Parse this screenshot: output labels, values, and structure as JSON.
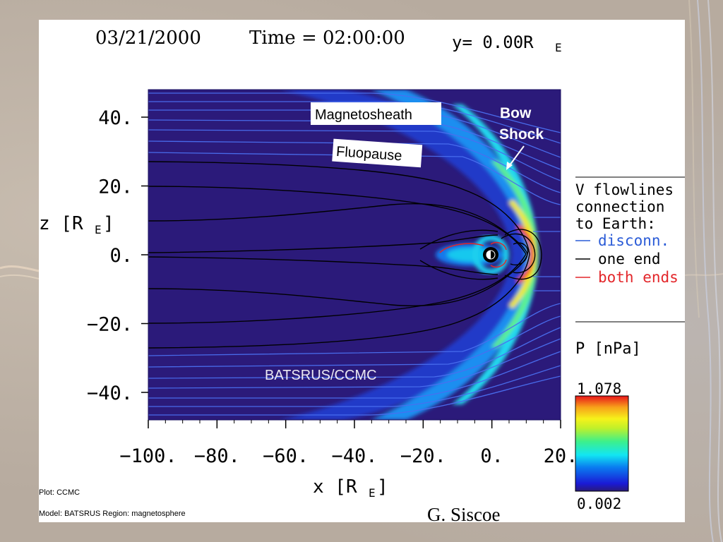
{
  "header": {
    "date": "03/21/2000",
    "time_label": "Time = 02:00:00",
    "y_label": "y= 0.00R",
    "y_sub": "E"
  },
  "annotations": {
    "magnetosheath": "Magnetosheath",
    "bow": "Bow",
    "shock": "Shock",
    "fluopause": "Fluopause",
    "model_label": "BATSRUS/CCMC"
  },
  "legend": {
    "title_lines": [
      "V flowlines",
      "connection",
      "to Earth:"
    ],
    "items": [
      {
        "label": "disconn.",
        "color": "#2a5bd7"
      },
      {
        "label": "one end",
        "color": "#000000"
      },
      {
        "label": "both ends",
        "color": "#e3262a"
      }
    ]
  },
  "colorbar": {
    "title": "P [nPa]",
    "max_label": "1.078",
    "min_label": "0.002"
  },
  "footer": {
    "plot_line": "Plot: CCMC",
    "model_line": "Model: BATSRUS   Region: magnetosphere",
    "credit": "G. Siscoe"
  },
  "chart_data": {
    "type": "heatmap",
    "title": "03/21/2000 Time = 02:00:00 y= 0.00RE",
    "xlabel": "x [RE]",
    "ylabel": "z [RE]",
    "xlim": [
      -100,
      20
    ],
    "ylim": [
      -48,
      48
    ],
    "x_ticks": [
      -100,
      -80,
      -60,
      -40,
      -20,
      0,
      20
    ],
    "x_tick_labels": [
      "−100.",
      "−80.",
      "−60.",
      "−40.",
      "−20.",
      "0.",
      "20."
    ],
    "y_ticks": [
      40,
      20,
      0,
      -20,
      -40
    ],
    "y_tick_labels": [
      "40.",
      "20.",
      "0.",
      "−20.",
      "−40."
    ],
    "color_variable": "P [nPa]",
    "color_range": [
      0.002,
      1.078
    ],
    "colormap": [
      "#2a1a78",
      "#1a1ad6",
      "#0a7cf0",
      "#12e6f2",
      "#3cf08c",
      "#bff02a",
      "#f6f21a",
      "#f7a21a",
      "#e8141a"
    ],
    "bow_shock_nose_x": 12,
    "magnetopause_nose_x": 9,
    "features": [
      "Bow Shock",
      "Magnetosheath",
      "Fluopause"
    ]
  }
}
